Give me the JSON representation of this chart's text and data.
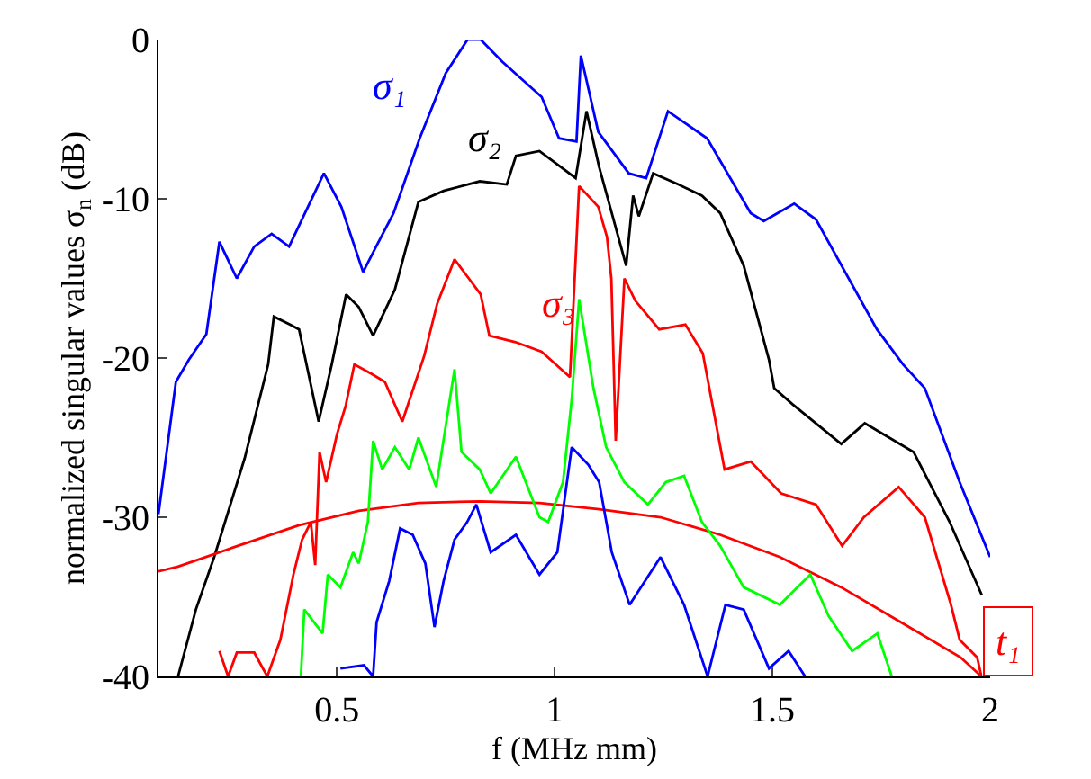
{
  "chart_data": {
    "type": "line",
    "xlabel": "f (MHz mm)",
    "ylabel": "normalized singular values σ$_{n}$ (dB)",
    "xlim": [
      0.09,
      2
    ],
    "ylim": [
      -40,
      0
    ],
    "xticks": [
      0.5,
      1,
      1.5,
      2
    ],
    "yticks": [
      -40,
      -30,
      -20,
      -10,
      0
    ],
    "legend": false,
    "marker": "none",
    "line_style": "solid",
    "series": [
      {
        "name": "σ₁",
        "color": "#0000ff",
        "x": [
          0.09,
          0.13,
          0.16,
          0.2,
          0.23,
          0.27,
          0.31,
          0.35,
          0.39,
          0.47,
          0.51,
          0.56,
          0.59,
          0.63,
          0.69,
          0.75,
          0.8,
          0.83,
          0.88,
          0.97,
          1.01,
          1.05,
          1.06,
          1.1,
          1.17,
          1.21,
          1.26,
          1.35,
          1.45,
          1.48,
          1.55,
          1.6,
          1.74,
          1.8,
          1.85,
          1.93,
          2.0
        ],
        "values": [
          -29.8,
          -21.5,
          -20.1,
          -18.5,
          -12.7,
          -15,
          -13,
          -12.2,
          -13,
          -8.4,
          -10.5,
          -14.6,
          -13,
          -10.9,
          -6.2,
          -2.1,
          0,
          0,
          -1.4,
          -3.6,
          -6.2,
          -6.4,
          -1,
          -5.8,
          -8.4,
          -8.7,
          -4.5,
          -6.2,
          -10.9,
          -11.4,
          -10.3,
          -11.3,
          -18.2,
          -20.4,
          -21.9,
          -27.8,
          -32.5
        ]
      },
      {
        "name": "σ₂",
        "color": "#000000",
        "x": [
          0.135,
          0.176,
          0.218,
          0.288,
          0.342,
          0.355,
          0.392,
          0.413,
          0.458,
          0.488,
          0.521,
          0.55,
          0.583,
          0.633,
          0.687,
          0.745,
          0.828,
          0.89,
          0.911,
          0.965,
          1.048,
          1.073,
          1.102,
          1.164,
          1.18,
          1.193,
          1.226,
          1.284,
          1.338,
          1.38,
          1.434,
          1.492,
          1.504,
          1.546,
          1.658,
          1.712,
          1.824,
          1.907,
          1.981
        ],
        "values": [
          -40,
          -35.8,
          -32.5,
          -26.3,
          -20.4,
          -17.4,
          -17.9,
          -18.2,
          -24,
          -20.4,
          -16,
          -16.8,
          -18.6,
          -15.7,
          -10.2,
          -9.5,
          -8.9,
          -9.1,
          -7.3,
          -7,
          -8.7,
          -4.5,
          -8,
          -14.2,
          -9.8,
          -11.1,
          -8.4,
          -9.1,
          -9.8,
          -10.9,
          -14.2,
          -20.1,
          -21.9,
          -22.9,
          -25.4,
          -24.1,
          -25.9,
          -30.3,
          -34.9
        ]
      },
      {
        "name": "σ₃",
        "color": "#ff0000",
        "x": [
          0.23,
          0.25,
          0.27,
          0.31,
          0.34,
          0.37,
          0.4,
          0.42,
          0.44,
          0.45,
          0.46,
          0.475,
          0.5,
          0.52,
          0.54,
          0.58,
          0.61,
          0.65,
          0.7,
          0.73,
          0.77,
          0.8,
          0.83,
          0.85,
          0.91,
          0.97,
          1.035,
          1.056,
          1.1,
          1.12,
          1.13,
          1.14,
          1.16,
          1.185,
          1.24,
          1.3,
          1.34,
          1.39,
          1.45,
          1.52,
          1.6,
          1.66,
          1.71,
          1.79,
          1.85,
          1.91,
          1.93,
          1.97,
          1.98
        ],
        "values": [
          -38.4,
          -40,
          -38.5,
          -38.5,
          -40,
          -37.7,
          -33.6,
          -31.4,
          -30.3,
          -33,
          -25.9,
          -27.8,
          -24.8,
          -23,
          -20.4,
          -21,
          -21.5,
          -24,
          -19.9,
          -16.6,
          -13.8,
          -14.9,
          -16,
          -18.6,
          -19,
          -19.6,
          -21.2,
          -9.2,
          -10.5,
          -12.4,
          -15,
          -25.2,
          -15,
          -16.4,
          -18.2,
          -17.9,
          -19.7,
          -27,
          -26.5,
          -28.5,
          -29.2,
          -31.8,
          -30,
          -28.1,
          -30,
          -35.5,
          -37.7,
          -38.8,
          -40
        ]
      },
      {
        "name": "t₁",
        "color": "#ff0000",
        "x": [
          0.09,
          0.135,
          0.272,
          0.413,
          0.55,
          0.687,
          0.828,
          0.965,
          1.102,
          1.243,
          1.38,
          1.517,
          1.658,
          1.795,
          1.932,
          1.98
        ],
        "values": [
          -33.4,
          -33.1,
          -31.8,
          -30.5,
          -29.6,
          -29.1,
          -29,
          -29.1,
          -29.5,
          -30,
          -31.1,
          -32.5,
          -34.4,
          -36.6,
          -38.8,
          -40
        ]
      },
      {
        "color": "#00ff00",
        "x": [
          0.417,
          0.425,
          0.467,
          0.479,
          0.508,
          0.537,
          0.55,
          0.571,
          0.583,
          0.604,
          0.633,
          0.666,
          0.687,
          0.728,
          0.77,
          0.786,
          0.828,
          0.853,
          0.911,
          0.965,
          0.985,
          1.019,
          1.039,
          1.056,
          1.089,
          1.118,
          1.16,
          1.214,
          1.255,
          1.297,
          1.338,
          1.38,
          1.434,
          1.517,
          1.587,
          1.629,
          1.683,
          1.741,
          1.774
        ],
        "values": [
          -40,
          -35.8,
          -37.3,
          -33.6,
          -34.4,
          -32.2,
          -32.9,
          -30.3,
          -25.2,
          -27,
          -25.6,
          -27,
          -25,
          -28.1,
          -20.7,
          -25.9,
          -27,
          -28.5,
          -26.2,
          -30,
          -30.3,
          -27.8,
          -22.6,
          -16.3,
          -21.9,
          -25.6,
          -27.8,
          -29.2,
          -27.8,
          -27.4,
          -30.3,
          -31.8,
          -34.4,
          -35.5,
          -33.6,
          -36.2,
          -38.4,
          -37.3,
          -40
        ]
      },
      {
        "color": "#0000ff",
        "x": [
          0.508,
          0.562,
          0.583,
          0.591,
          0.62,
          0.645,
          0.674,
          0.703,
          0.724,
          0.745,
          0.77,
          0.799,
          0.82,
          0.853,
          0.911,
          0.965,
          1.006,
          1.039,
          1.077,
          1.102,
          1.131,
          1.172,
          1.243,
          1.297,
          1.351,
          1.392,
          1.434,
          1.492,
          1.537,
          1.575
        ],
        "values": [
          -39.5,
          -39.3,
          -40,
          -36.6,
          -34,
          -30.7,
          -31.1,
          -32.9,
          -36.9,
          -34,
          -31.4,
          -30.3,
          -29.2,
          -32.2,
          -31.1,
          -33.6,
          -32.2,
          -25.6,
          -26.7,
          -27.8,
          -32.2,
          -35.5,
          -32.5,
          -35.5,
          -40,
          -35.5,
          -35.8,
          -39.5,
          -38.4,
          -40
        ]
      }
    ]
  }
}
